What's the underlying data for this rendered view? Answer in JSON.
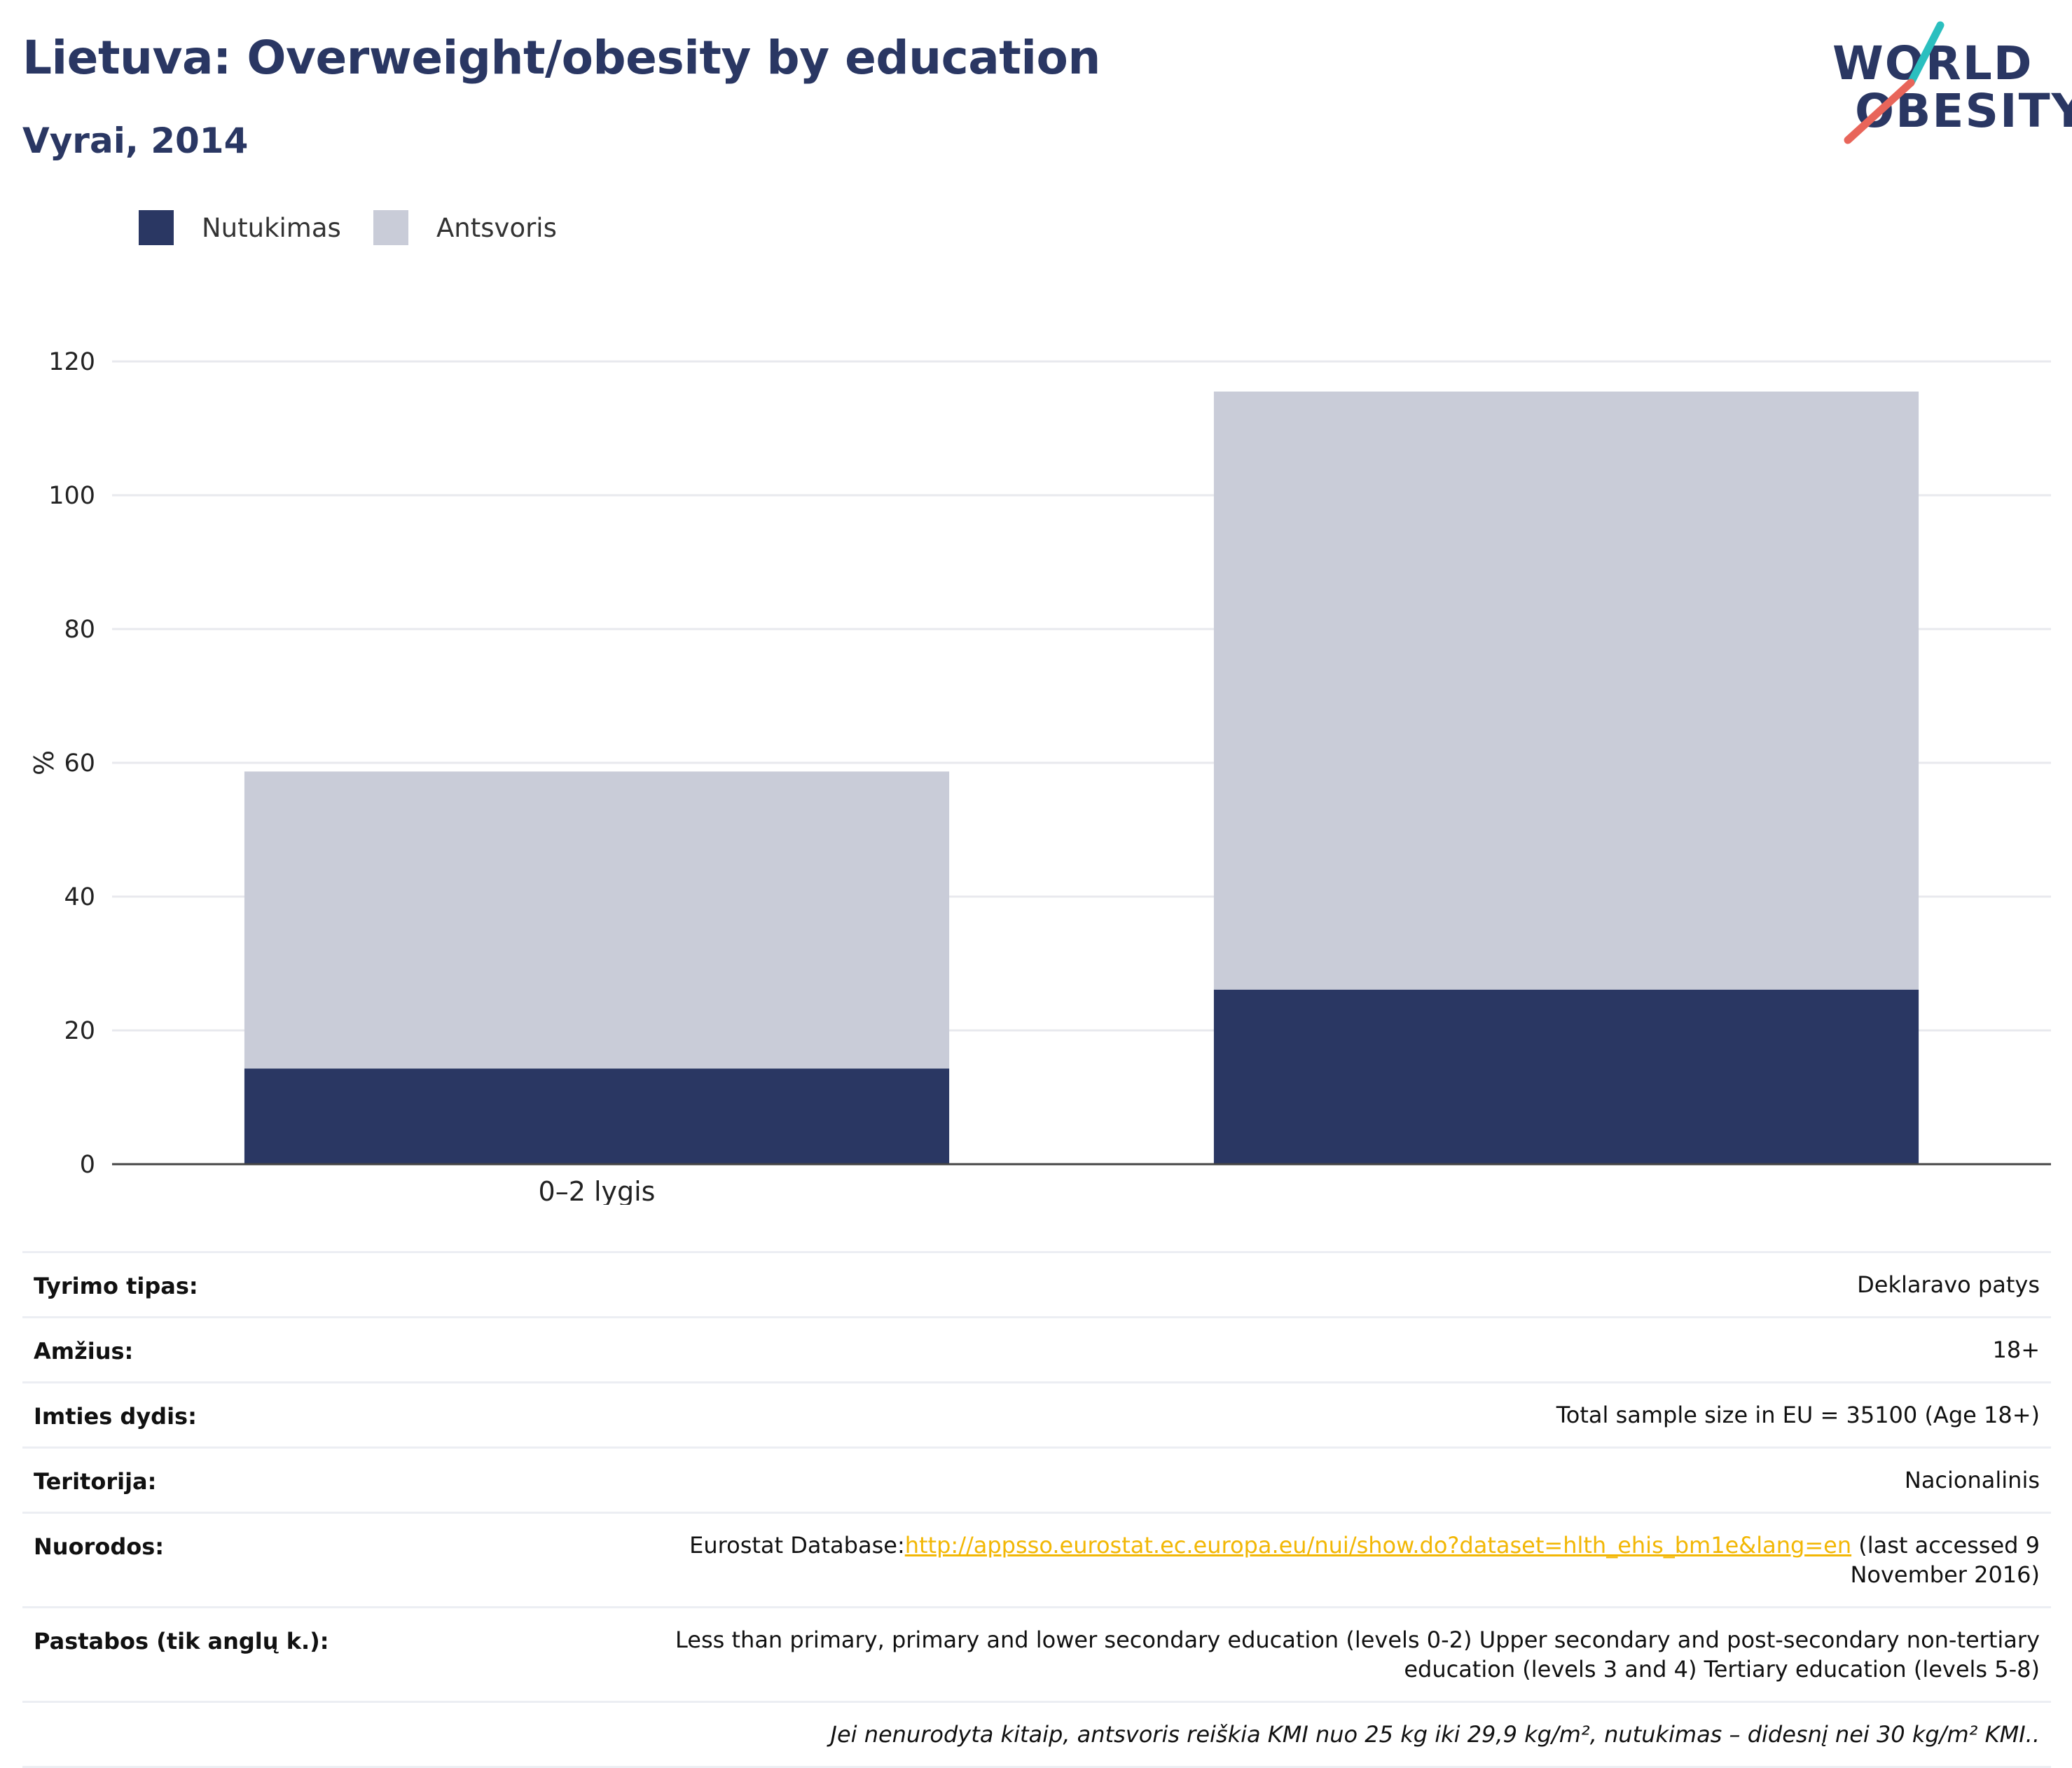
{
  "header": {
    "title": "Lietuva: Overweight/obesity by education",
    "subtitle": "Vyrai, 2014"
  },
  "logo": {
    "line1": "WORLD",
    "line2": "OBESITY",
    "colors": {
      "text": "#2a3763",
      "slash_top": "#2bbfbf",
      "slash_bottom": "#e8655a"
    }
  },
  "legend": {
    "items": [
      {
        "label": "Nutukimas",
        "color": "#2a3763"
      },
      {
        "label": "Antsvoris",
        "color": "#c9ccd8"
      }
    ]
  },
  "chart_data": {
    "type": "bar",
    "stacked": true,
    "categories": [
      "0–2 lygis",
      ""
    ],
    "series": [
      {
        "name": "Nutukimas",
        "color": "#2a3763",
        "values": [
          14.3,
          26.1
        ]
      },
      {
        "name": "Antsvoris",
        "color": "#c9ccd8",
        "values": [
          44.4,
          89.4
        ]
      }
    ],
    "ylabel": "%",
    "ylim": [
      0,
      120
    ],
    "yticks": [
      0,
      20,
      40,
      60,
      80,
      100,
      120
    ],
    "grid": true,
    "legend_position": "top-left"
  },
  "meta": {
    "rows": [
      {
        "key": "Tyrimo tipas:",
        "value": "Deklaravo patys"
      },
      {
        "key": "Amžius:",
        "value": "18+"
      },
      {
        "key": "Imties dydis:",
        "value": "Total sample size in EU = 35100 (Age 18+)"
      },
      {
        "key": "Teritorija:",
        "value": "Nacionalinis"
      },
      {
        "key": "Nuorodos:",
        "value_prefix": "Eurostat Database:",
        "link": "http://appsso.eurostat.ec.europa.eu/nui/show.do?dataset=hlth_ehis_bm1e&lang=en",
        "value_suffix": " (last accessed 9 November 2016)"
      },
      {
        "key": "Pastabos (tik anglų k.):",
        "value": "Less than primary, primary and lower secondary education (levels 0-2) Upper secondary and post-secondary non-tertiary education (levels 3 and 4) Tertiary education (levels 5-8)"
      }
    ],
    "footnote": "Jei nenurodyta kitaip, antsvoris reiškia KMI nuo 25 kg iki 29,9 kg/m², nutukimas – didesnį nei 30 kg/m² KMI.."
  }
}
